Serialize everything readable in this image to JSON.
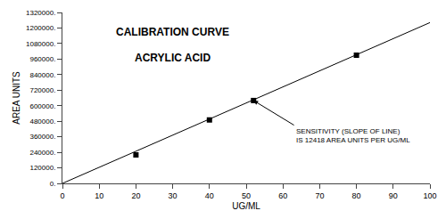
{
  "chart_data": {
    "type": "scatter",
    "title": "CALIBRATION CURVE",
    "subtitle": "ACRYLIC ACID",
    "xlabel": "UG/ML",
    "ylabel": "AREA UNITS",
    "series": [
      {
        "type": "line",
        "color": "#000000",
        "line_style": "solid",
        "x": [
          0,
          100
        ],
        "values": [
          0,
          1241800
        ]
      },
      {
        "type": "scatter",
        "color": "#000000",
        "marker": "square",
        "x": [
          20,
          40,
          52,
          80
        ],
        "values": [
          220000,
          490000,
          640000,
          990000
        ]
      }
    ],
    "xlim": [
      0,
      100
    ],
    "ylim": [
      0,
      1320000
    ],
    "xticks": [
      0,
      10,
      20,
      30,
      40,
      50,
      60,
      70,
      80,
      90,
      100
    ],
    "yticks": [
      {
        "value": 0,
        "label": "0."
      },
      {
        "value": 120000,
        "label": "120000."
      },
      {
        "value": 240000,
        "label": "240000."
      },
      {
        "value": 360000,
        "label": "360000."
      },
      {
        "value": 480000,
        "label": "480000."
      },
      {
        "value": 600000,
        "label": "600000."
      },
      {
        "value": 720000,
        "label": "720000."
      },
      {
        "value": 840000,
        "label": "840000."
      },
      {
        "value": 960000,
        "label": "960000."
      },
      {
        "value": 1080000,
        "label": "1080000."
      },
      {
        "value": 1200000,
        "label": "1200000."
      },
      {
        "value": 1320000,
        "label": "1320000."
      }
    ],
    "annotations": [
      {
        "text": "SENSITIVITY (SLOPE OF LINE)\nIS 12418 AREA UNITS PER UG/ML",
        "x": 52,
        "y": 640000,
        "text_x": 63,
        "text_y": 450000
      }
    ],
    "grid": false
  }
}
